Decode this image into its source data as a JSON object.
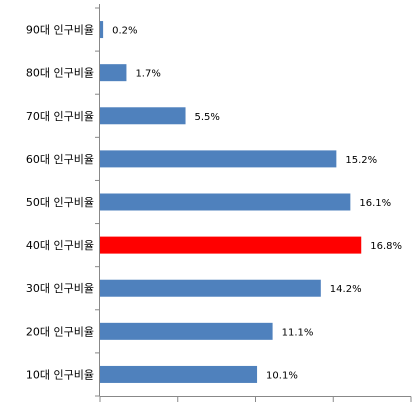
{
  "chart_data": {
    "type": "bar",
    "orientation": "horizontal",
    "title": "",
    "xlabel": "",
    "ylabel": "",
    "categories": [
      "90대 인구비율",
      "80대 인구비율",
      "70대 인구비율",
      "60대 인구비율",
      "50대 인구비율",
      "40대 인구비율",
      "30대 인구비율",
      "20대 인구비율",
      "10대 인구비율"
    ],
    "values": [
      0.2,
      1.7,
      5.5,
      15.2,
      16.1,
      16.8,
      14.2,
      11.1,
      10.1
    ],
    "data_labels": [
      "0.2%",
      "1.7%",
      "5.5%",
      "15.2%",
      "16.1%",
      "16.8%",
      "14.2%",
      "11.1%",
      "10.1%"
    ],
    "highlight_index": 5,
    "xlim": [
      0,
      20
    ],
    "x_tick_step": 5,
    "show_x_tick_labels": false,
    "grid": false,
    "legend": "none",
    "colors": {
      "bar": "#4f81bd",
      "highlight": "#ff0000",
      "axis": "#888888",
      "label": "#000000"
    }
  }
}
